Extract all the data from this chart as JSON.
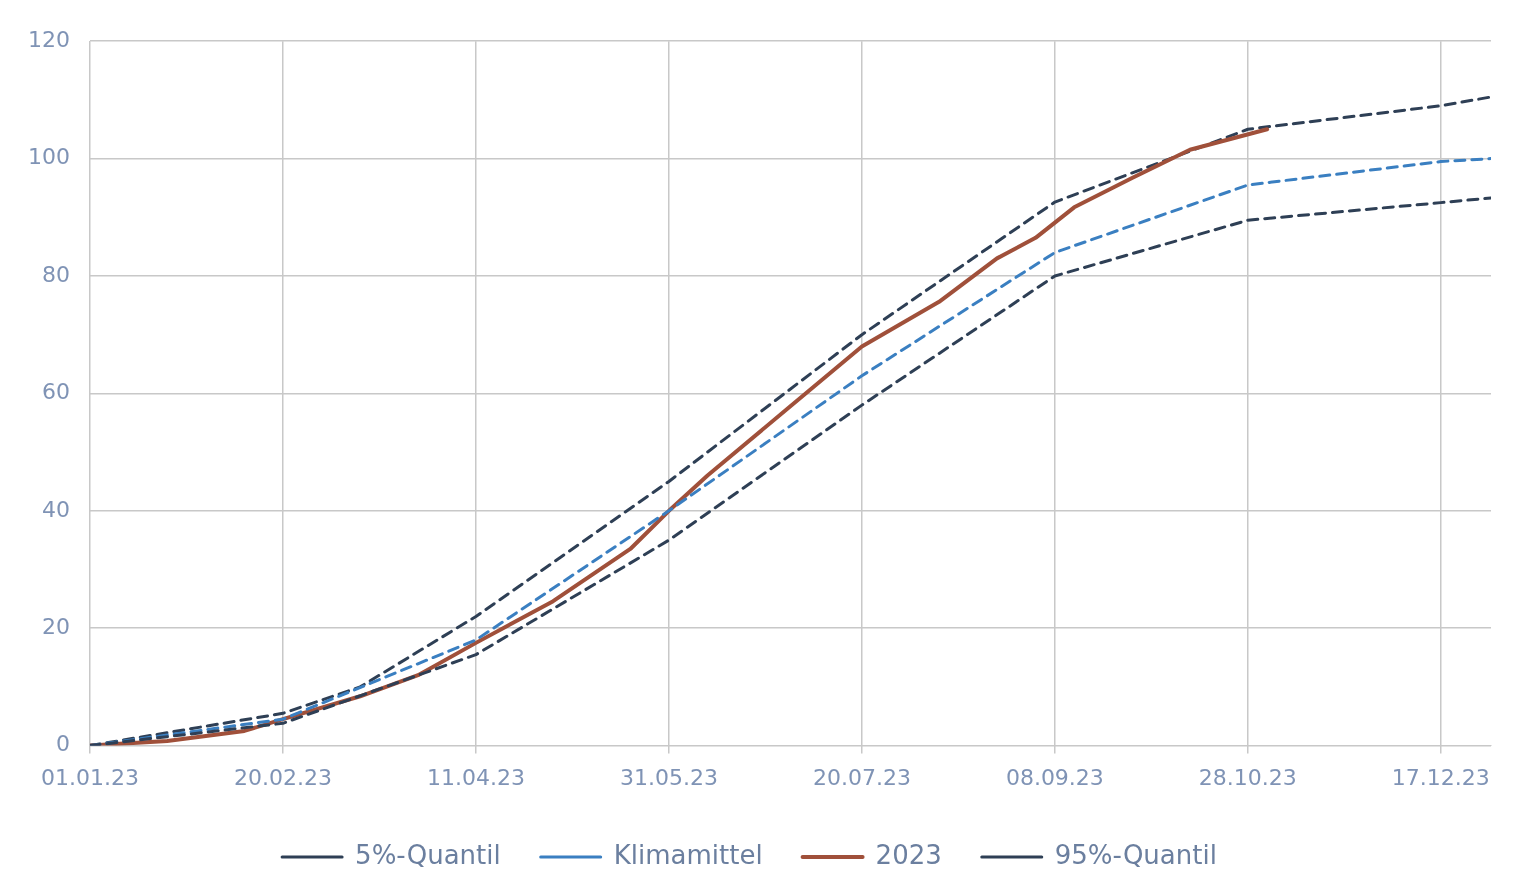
{
  "chart_data": {
    "type": "line",
    "xlim": [
      "2023-01-01",
      "2023-12-30"
    ],
    "xticks": [
      {
        "value": "2023-01-01",
        "label": "01.01.23"
      },
      {
        "value": "2023-02-20",
        "label": "20.02.23"
      },
      {
        "value": "2023-04-11",
        "label": "11.04.23"
      },
      {
        "value": "2023-05-31",
        "label": "31.05.23"
      },
      {
        "value": "2023-07-20",
        "label": "20.07.23"
      },
      {
        "value": "2023-09-08",
        "label": "08.09.23"
      },
      {
        "value": "2023-10-28",
        "label": "28.10.23"
      },
      {
        "value": "2023-12-17",
        "label": "17.12.23"
      }
    ],
    "ylim": [
      0,
      120
    ],
    "yticks": [
      0,
      20,
      40,
      60,
      80,
      100,
      120
    ],
    "grid": true,
    "legend": "bottom",
    "series": [
      {
        "name": "5%-Quantil",
        "color": "#2e3f55",
        "line_style": "dashed",
        "x": [
          "2023-01-01",
          "2023-02-20",
          "2023-04-11",
          "2023-05-31",
          "2023-07-20",
          "2023-09-08",
          "2023-10-28",
          "2023-12-17",
          "2023-12-30"
        ],
        "values": [
          0,
          3.8,
          15.5,
          35,
          58,
          80,
          89.5,
          92.5,
          93.3
        ]
      },
      {
        "name": "Klimamittel",
        "color": "#3a7fc1",
        "line_style": "dashed",
        "x": [
          "2023-01-01",
          "2023-02-20",
          "2023-04-11",
          "2023-05-31",
          "2023-07-20",
          "2023-09-08",
          "2023-10-28",
          "2023-12-17",
          "2023-12-30"
        ],
        "values": [
          0,
          4.5,
          18,
          40,
          63,
          84,
          95.5,
          99.5,
          100
        ]
      },
      {
        "name": "2023",
        "color": "#a0503a",
        "line_style": "solid",
        "x": [
          "2023-01-01",
          "2023-01-21",
          "2023-02-10",
          "2023-02-20",
          "2023-03-12",
          "2023-03-27",
          "2023-04-11",
          "2023-05-01",
          "2023-05-21",
          "2023-05-31",
          "2023-06-10",
          "2023-06-30",
          "2023-07-20",
          "2023-08-09",
          "2023-08-24",
          "2023-09-03",
          "2023-09-13",
          "2023-09-28",
          "2023-10-13",
          "2023-11-02"
        ],
        "values": [
          0,
          0.8,
          2.5,
          4.5,
          8.4,
          12,
          17.5,
          24.6,
          33.5,
          40,
          46,
          57,
          68,
          75.6,
          83,
          86.5,
          91.7,
          96.7,
          101.5,
          105
        ]
      },
      {
        "name": "95%-Quantil",
        "color": "#2e3f55",
        "line_style": "dashed",
        "x": [
          "2023-01-01",
          "2023-02-20",
          "2023-03-12",
          "2023-04-11",
          "2023-05-31",
          "2023-07-20",
          "2023-09-08",
          "2023-10-28",
          "2023-12-17",
          "2023-12-30"
        ],
        "values": [
          0,
          5.5,
          10,
          22,
          45,
          70,
          92.6,
          105,
          109,
          110.5
        ]
      }
    ]
  }
}
